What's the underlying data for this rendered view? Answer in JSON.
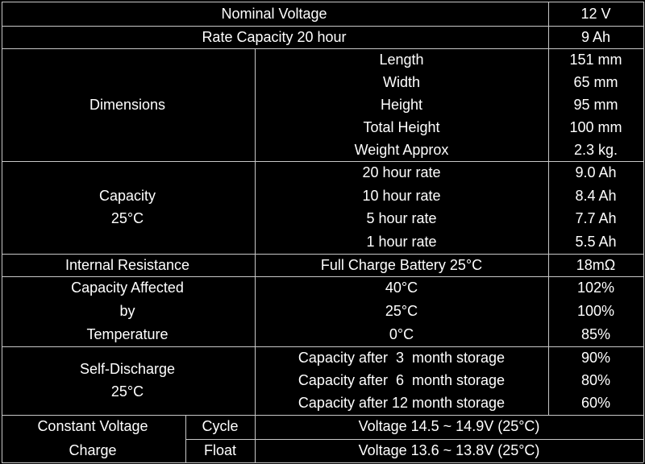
{
  "sections": [
    {
      "label": [
        "Nominal Voltage"
      ],
      "value": "12 V"
    },
    {
      "label": [
        "Rate Capacity 20 hour"
      ],
      "value": "9 Ah"
    },
    {
      "label": [
        "Dimensions"
      ],
      "items": [
        {
          "name": "Length",
          "value": "151 mm"
        },
        {
          "name": "Width",
          "value": "65 mm"
        },
        {
          "name": "Height",
          "value": "95 mm"
        },
        {
          "name": "Total Height",
          "value": "100 mm"
        },
        {
          "name": "Weight Approx",
          "value": "2.3 kg."
        }
      ]
    },
    {
      "label": [
        "Capacity",
        "25°C"
      ],
      "items": [
        {
          "name": "20 hour rate",
          "value": "9.0 Ah"
        },
        {
          "name": "10 hour rate",
          "value": "8.4 Ah"
        },
        {
          "name": "5 hour rate",
          "value": "7.7 Ah"
        },
        {
          "name": "1 hour rate",
          "value": "5.5 Ah"
        }
      ]
    },
    {
      "label": [
        "Internal Resistance"
      ],
      "items": [
        {
          "name": "Full Charge Battery 25°C",
          "value": "18mΩ"
        }
      ]
    },
    {
      "label": [
        "Capacity Affected",
        "by",
        "Temperature"
      ],
      "items": [
        {
          "name": "40°C",
          "value": "102%"
        },
        {
          "name": "25°C",
          "value": "100%"
        },
        {
          "name": "0°C",
          "value": "85%"
        }
      ]
    },
    {
      "label": [
        "Self-Discharge",
        "25°C"
      ],
      "items": [
        {
          "name": "Capacity after  3  month storage",
          "value": "90%"
        },
        {
          "name": "Capacity after  6  month storage",
          "value": "80%"
        },
        {
          "name": "Capacity after 12 month storage",
          "value": "60%"
        }
      ]
    },
    {
      "label": [
        "Constant Voltage",
        "Charge"
      ],
      "modes": [
        {
          "name": "Cycle",
          "value": "Voltage 14.5 ~ 14.9V (25°C)"
        },
        {
          "name": "Float",
          "value": "Voltage 13.6 ~ 13.8V (25°C)"
        }
      ]
    }
  ]
}
